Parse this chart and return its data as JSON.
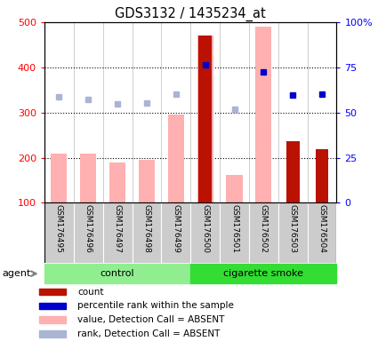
{
  "title": "GDS3132 / 1435234_at",
  "samples": [
    "GSM176495",
    "GSM176496",
    "GSM176497",
    "GSM176498",
    "GSM176499",
    "GSM176500",
    "GSM176501",
    "GSM176502",
    "GSM176503",
    "GSM176504"
  ],
  "bar_values_pink": [
    210,
    210,
    190,
    195,
    295,
    470,
    162,
    490,
    null,
    null
  ],
  "bar_values_red": [
    null,
    null,
    null,
    null,
    null,
    470,
    null,
    null,
    237,
    218
  ],
  "scatter_light_blue": [
    335,
    328,
    320,
    322,
    340,
    null,
    307,
    null,
    null,
    null
  ],
  "scatter_dark_blue": [
    null,
    null,
    null,
    null,
    null,
    405,
    null,
    390,
    338,
    340
  ],
  "ylim_left": [
    100,
    500
  ],
  "ylim_right": [
    0,
    100
  ],
  "yticks_left": [
    100,
    200,
    300,
    400,
    500
  ],
  "yticks_right": [
    0,
    25,
    50,
    75,
    100
  ],
  "ytick_labels_right": [
    "0",
    "25",
    "50",
    "75",
    "100%"
  ],
  "control_label": "control",
  "smoke_label": "cigarette smoke",
  "agent_label": "agent",
  "legend_items": [
    {
      "label": "count"
    },
    {
      "label": "percentile rank within the sample"
    },
    {
      "label": "value, Detection Call = ABSENT"
    },
    {
      "label": "rank, Detection Call = ABSENT"
    }
  ],
  "pink_bar_color": "#ffb0b0",
  "red_bar_color": "#bb1100",
  "light_blue_scatter_color": "#aab4d4",
  "dark_blue_scatter_color": "#0000cc",
  "control_bg": "#90ee90",
  "smoke_bg": "#33dd33",
  "tick_area_bg": "#cccccc",
  "group_area_bg": "#33dd33",
  "gridline_color": "#000000",
  "n_control": 5,
  "n_smoke": 5
}
